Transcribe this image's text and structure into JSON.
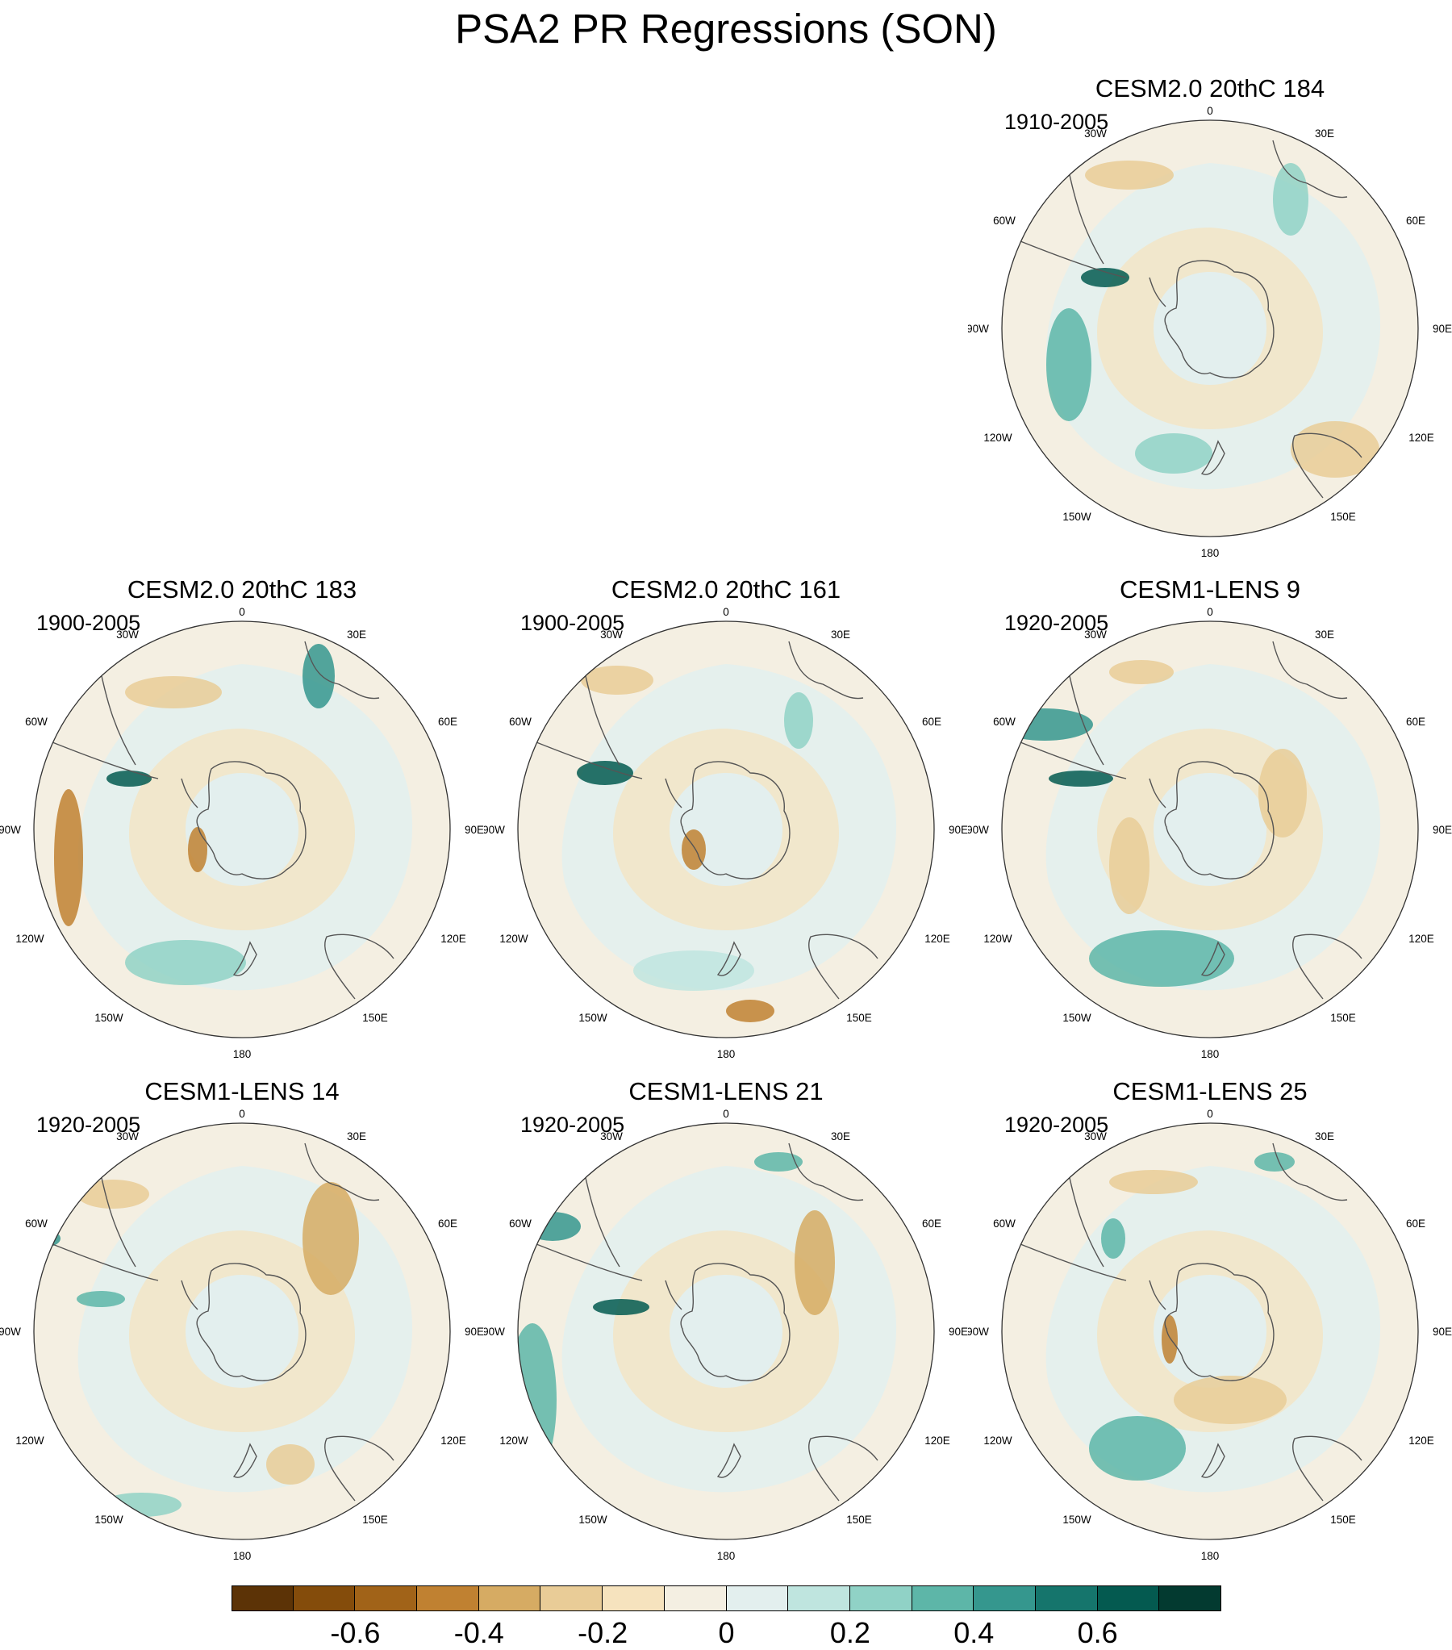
{
  "title": "PSA2 PR Regressions (SON)",
  "panels": [
    {
      "name": "CESM2.0 20thC 184",
      "period": "1910-2005"
    },
    {
      "name": "CESM2.0 20thC 183",
      "period": "1900-2005"
    },
    {
      "name": "CESM2.0 20thC 161",
      "period": "1900-2005"
    },
    {
      "name": "CESM1-LENS 9",
      "period": "1920-2005"
    },
    {
      "name": "CESM1-LENS 14",
      "period": "1920-2005"
    },
    {
      "name": "CESM1-LENS 21",
      "period": "1920-2005"
    },
    {
      "name": "CESM1-LENS 25",
      "period": "1920-2005"
    }
  ],
  "map_labels": {
    "top": "0",
    "bottom": "180",
    "left": "90W",
    "right": "90E",
    "upper_left_1": "30W",
    "upper_left_2": "60W",
    "lower_left_1": "120W",
    "lower_left_2": "150W",
    "upper_right_1": "30E",
    "upper_right_2": "60E",
    "lower_right_1": "120E",
    "lower_right_2": "150E"
  },
  "colorbar": {
    "colors": [
      "#5c3306",
      "#844c0b",
      "#a16318",
      "#c08131",
      "#d6ab63",
      "#e9cc97",
      "#f6e3be",
      "#f4efe2",
      "#e3efee",
      "#bfe5df",
      "#90d2c6",
      "#5db6a8",
      "#35978e",
      "#15756c",
      "#045a50",
      "#033a30"
    ],
    "labels": [
      "-0.6",
      "-0.4",
      "-0.2",
      "0",
      "0.2",
      "0.4",
      "0.6"
    ]
  }
}
